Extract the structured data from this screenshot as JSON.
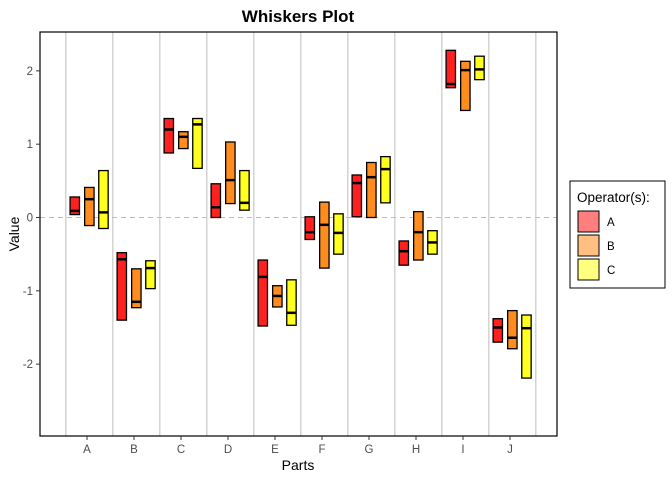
{
  "chart_data": {
    "type": "bar",
    "subtype": "floating-box",
    "title": "Whiskers Plot",
    "xlabel": "Parts",
    "ylabel": "Value",
    "categories": [
      "A",
      "B",
      "C",
      "D",
      "E",
      "F",
      "G",
      "H",
      "I",
      "J"
    ],
    "ylim": [
      -2.98,
      2.53
    ],
    "yticks": [
      -2,
      -1,
      0,
      1,
      2
    ],
    "reference_line": 0,
    "grid": "vertical",
    "legend": {
      "title": "Operator(s):",
      "placement": "right"
    },
    "series": [
      {
        "name": "A",
        "color": "#FF2020",
        "legend_color": "#FF7F7F",
        "low": [
          0.04,
          -1.4,
          0.88,
          0.0,
          -1.48,
          -0.3,
          0.01,
          -0.65,
          1.77,
          -1.7
        ],
        "high": [
          0.28,
          -0.48,
          1.35,
          0.46,
          -0.58,
          0.01,
          0.58,
          -0.32,
          2.28,
          -1.38
        ],
        "median": [
          0.09,
          -0.57,
          1.2,
          0.14,
          -0.81,
          -0.2,
          0.47,
          -0.46,
          1.82,
          -1.5
        ]
      },
      {
        "name": "B",
        "color": "#FF8C1F",
        "legend_color": "#FFBF80",
        "low": [
          -0.11,
          -1.23,
          0.94,
          0.19,
          -1.22,
          -0.69,
          0.0,
          -0.58,
          1.46,
          -1.79
        ],
        "high": [
          0.41,
          -0.7,
          1.17,
          1.03,
          -0.93,
          0.21,
          0.75,
          0.08,
          2.13,
          -1.27
        ],
        "median": [
          0.25,
          -1.15,
          1.1,
          0.51,
          -1.07,
          -0.1,
          0.55,
          -0.2,
          2.01,
          -1.64
        ]
      },
      {
        "name": "C",
        "color": "#FFFF20",
        "legend_color": "#FFFF80",
        "low": [
          -0.15,
          -0.97,
          0.67,
          0.1,
          -1.47,
          -0.5,
          0.2,
          -0.5,
          1.88,
          -2.19
        ],
        "high": [
          0.64,
          -0.59,
          1.35,
          0.64,
          -0.85,
          0.05,
          0.83,
          -0.18,
          2.2,
          -1.33
        ],
        "median": [
          0.07,
          -0.69,
          1.27,
          0.2,
          -1.3,
          -0.21,
          0.66,
          -0.34,
          2.02,
          -1.51
        ]
      }
    ]
  }
}
